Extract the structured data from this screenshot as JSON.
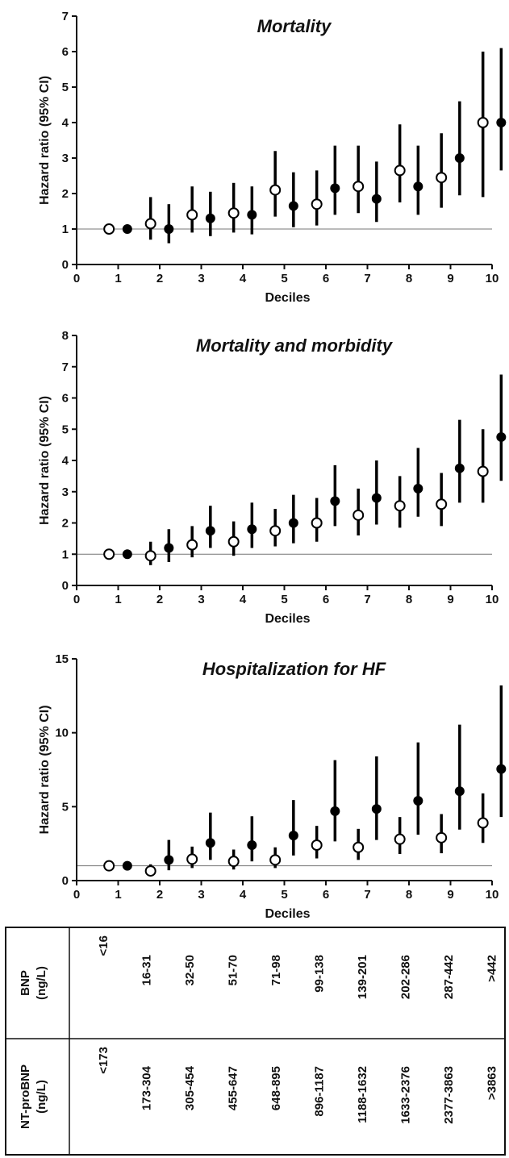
{
  "chart_data": [
    {
      "type": "scatter",
      "title": "Mortality",
      "xlabel": "Deciles",
      "ylabel": "Hazard ratio (95% CI)",
      "xlim": [
        0,
        10
      ],
      "ylim": [
        0,
        7
      ],
      "xticks": [
        0,
        1,
        2,
        3,
        4,
        5,
        6,
        7,
        8,
        9,
        10
      ],
      "yticks": [
        0,
        1,
        2,
        3,
        4,
        5,
        6,
        7
      ],
      "reference_line": 1,
      "series": [
        {
          "marker": "open",
          "values": [
            {
              "x": 1,
              "y": 1.0,
              "lo": 1.0,
              "hi": 1.0
            },
            {
              "x": 2,
              "y": 1.15,
              "lo": 0.7,
              "hi": 1.9
            },
            {
              "x": 3,
              "y": 1.4,
              "lo": 0.9,
              "hi": 2.2
            },
            {
              "x": 4,
              "y": 1.45,
              "lo": 0.9,
              "hi": 2.3
            },
            {
              "x": 5,
              "y": 2.1,
              "lo": 1.35,
              "hi": 3.2
            },
            {
              "x": 6,
              "y": 1.7,
              "lo": 1.1,
              "hi": 2.65
            },
            {
              "x": 7,
              "y": 2.2,
              "lo": 1.45,
              "hi": 3.35
            },
            {
              "x": 8,
              "y": 2.65,
              "lo": 1.75,
              "hi": 3.95
            },
            {
              "x": 9,
              "y": 2.45,
              "lo": 1.6,
              "hi": 3.7
            },
            {
              "x": 10,
              "y": 4.0,
              "lo": 1.9,
              "hi": 6.0
            }
          ]
        },
        {
          "marker": "filled",
          "values": [
            {
              "x": 1,
              "y": 1.0,
              "lo": 1.0,
              "hi": 1.0
            },
            {
              "x": 2,
              "y": 1.0,
              "lo": 0.6,
              "hi": 1.7
            },
            {
              "x": 3,
              "y": 1.3,
              "lo": 0.8,
              "hi": 2.05
            },
            {
              "x": 4,
              "y": 1.4,
              "lo": 0.85,
              "hi": 2.2
            },
            {
              "x": 5,
              "y": 1.65,
              "lo": 1.05,
              "hi": 2.6
            },
            {
              "x": 6,
              "y": 2.15,
              "lo": 1.4,
              "hi": 3.35
            },
            {
              "x": 7,
              "y": 1.85,
              "lo": 1.2,
              "hi": 2.9
            },
            {
              "x": 8,
              "y": 2.2,
              "lo": 1.4,
              "hi": 3.35
            },
            {
              "x": 9,
              "y": 3.0,
              "lo": 1.95,
              "hi": 4.6
            },
            {
              "x": 10,
              "y": 4.0,
              "lo": 2.65,
              "hi": 6.1
            }
          ]
        }
      ]
    },
    {
      "type": "scatter",
      "title": "Mortality and morbidity",
      "xlabel": "Deciles",
      "ylabel": "Hazard ratio (95% CI)",
      "xlim": [
        0,
        10
      ],
      "ylim": [
        0,
        8
      ],
      "xticks": [
        0,
        1,
        2,
        3,
        4,
        5,
        6,
        7,
        8,
        9,
        10
      ],
      "yticks": [
        0,
        1,
        2,
        3,
        4,
        5,
        6,
        7,
        8
      ],
      "reference_line": 1,
      "series": [
        {
          "marker": "open",
          "values": [
            {
              "x": 1,
              "y": 1.0,
              "lo": 1.0,
              "hi": 1.0
            },
            {
              "x": 2,
              "y": 0.95,
              "lo": 0.65,
              "hi": 1.4
            },
            {
              "x": 3,
              "y": 1.3,
              "lo": 0.9,
              "hi": 1.9
            },
            {
              "x": 4,
              "y": 1.4,
              "lo": 0.95,
              "hi": 2.05
            },
            {
              "x": 5,
              "y": 1.75,
              "lo": 1.25,
              "hi": 2.45
            },
            {
              "x": 6,
              "y": 2.0,
              "lo": 1.4,
              "hi": 2.8
            },
            {
              "x": 7,
              "y": 2.25,
              "lo": 1.6,
              "hi": 3.1
            },
            {
              "x": 8,
              "y": 2.55,
              "lo": 1.85,
              "hi": 3.5
            },
            {
              "x": 9,
              "y": 2.6,
              "lo": 1.9,
              "hi": 3.6
            },
            {
              "x": 10,
              "y": 3.65,
              "lo": 2.65,
              "hi": 5.0
            }
          ]
        },
        {
          "marker": "filled",
          "values": [
            {
              "x": 1,
              "y": 1.0,
              "lo": 1.0,
              "hi": 1.0
            },
            {
              "x": 2,
              "y": 1.2,
              "lo": 0.75,
              "hi": 1.8
            },
            {
              "x": 3,
              "y": 1.75,
              "lo": 1.2,
              "hi": 2.55
            },
            {
              "x": 4,
              "y": 1.8,
              "lo": 1.2,
              "hi": 2.65
            },
            {
              "x": 5,
              "y": 2.0,
              "lo": 1.35,
              "hi": 2.9
            },
            {
              "x": 6,
              "y": 2.7,
              "lo": 1.9,
              "hi": 3.85
            },
            {
              "x": 7,
              "y": 2.8,
              "lo": 1.95,
              "hi": 4.0
            },
            {
              "x": 8,
              "y": 3.1,
              "lo": 2.2,
              "hi": 4.4
            },
            {
              "x": 9,
              "y": 3.75,
              "lo": 2.65,
              "hi": 5.3
            },
            {
              "x": 10,
              "y": 4.75,
              "lo": 3.35,
              "hi": 6.75
            }
          ]
        }
      ]
    },
    {
      "type": "scatter",
      "title": "Hospitalization for HF",
      "xlabel": "Deciles",
      "ylabel": "Hazard ratio (95% CI)",
      "xlim": [
        0,
        10
      ],
      "ylim": [
        0,
        15
      ],
      "xticks": [
        0,
        1,
        2,
        3,
        4,
        5,
        6,
        7,
        8,
        9,
        10
      ],
      "yticks": [
        0,
        5,
        10,
        15
      ],
      "reference_line": 1,
      "series": [
        {
          "marker": "open",
          "values": [
            {
              "x": 1,
              "y": 1.0,
              "lo": 1.0,
              "hi": 1.0
            },
            {
              "x": 2,
              "y": 0.65,
              "lo": 0.35,
              "hi": 1.1
            },
            {
              "x": 3,
              "y": 1.45,
              "lo": 0.85,
              "hi": 2.3
            },
            {
              "x": 4,
              "y": 1.3,
              "lo": 0.75,
              "hi": 2.1
            },
            {
              "x": 5,
              "y": 1.4,
              "lo": 0.85,
              "hi": 2.25
            },
            {
              "x": 6,
              "y": 2.4,
              "lo": 1.5,
              "hi": 3.7
            },
            {
              "x": 7,
              "y": 2.25,
              "lo": 1.4,
              "hi": 3.5
            },
            {
              "x": 8,
              "y": 2.8,
              "lo": 1.8,
              "hi": 4.3
            },
            {
              "x": 9,
              "y": 2.9,
              "lo": 1.85,
              "hi": 4.5
            },
            {
              "x": 10,
              "y": 3.9,
              "lo": 2.55,
              "hi": 5.9
            }
          ]
        },
        {
          "marker": "filled",
          "values": [
            {
              "x": 1,
              "y": 1.0,
              "lo": 1.0,
              "hi": 1.0
            },
            {
              "x": 2,
              "y": 1.4,
              "lo": 0.7,
              "hi": 2.75
            },
            {
              "x": 3,
              "y": 2.55,
              "lo": 1.4,
              "hi": 4.6
            },
            {
              "x": 4,
              "y": 2.4,
              "lo": 1.3,
              "hi": 4.35
            },
            {
              "x": 5,
              "y": 3.05,
              "lo": 1.7,
              "hi": 5.45
            },
            {
              "x": 6,
              "y": 4.7,
              "lo": 2.65,
              "hi": 8.15
            },
            {
              "x": 7,
              "y": 4.85,
              "lo": 2.75,
              "hi": 8.4
            },
            {
              "x": 8,
              "y": 5.4,
              "lo": 3.1,
              "hi": 9.35
            },
            {
              "x": 9,
              "y": 6.05,
              "lo": 3.45,
              "hi": 10.55
            },
            {
              "x": 10,
              "y": 7.55,
              "lo": 4.3,
              "hi": 13.2
            }
          ]
        }
      ]
    }
  ],
  "table": {
    "rows": [
      {
        "header": [
          "BNP",
          "(ng/L)"
        ],
        "values": [
          "<16",
          "16-31",
          "32-50",
          "51-70",
          "71-98",
          "99-138",
          "139-201",
          "202-286",
          "287-442",
          ">442"
        ]
      },
      {
        "header": [
          "NT-proBNP",
          "(ng/L)"
        ],
        "values": [
          "<173",
          "173-304",
          "305-454",
          "455-647",
          "648-895",
          "896-1187",
          "1188-1632",
          "1633-2376",
          "2377-3863",
          ">3863"
        ]
      }
    ]
  }
}
